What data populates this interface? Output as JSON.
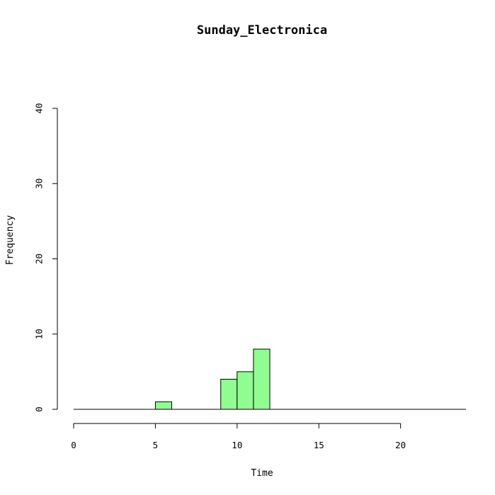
{
  "chart_data": {
    "type": "bar",
    "title": "Sunday_Electronica",
    "xlabel": "Time",
    "ylabel": "Frequency",
    "xlim": [
      0,
      24
    ],
    "ylim": [
      0,
      40
    ],
    "x_ticks": [
      0,
      5,
      10,
      15,
      20
    ],
    "y_ticks": [
      0,
      10,
      20,
      30,
      40
    ],
    "bins": [
      {
        "x0": 5,
        "x1": 6,
        "count": 1
      },
      {
        "x0": 9,
        "x1": 10,
        "count": 4
      },
      {
        "x0": 10,
        "x1": 11,
        "count": 5
      },
      {
        "x0": 11,
        "x1": 12,
        "count": 8
      }
    ],
    "bar_color": "#90fd90",
    "grid": false
  }
}
